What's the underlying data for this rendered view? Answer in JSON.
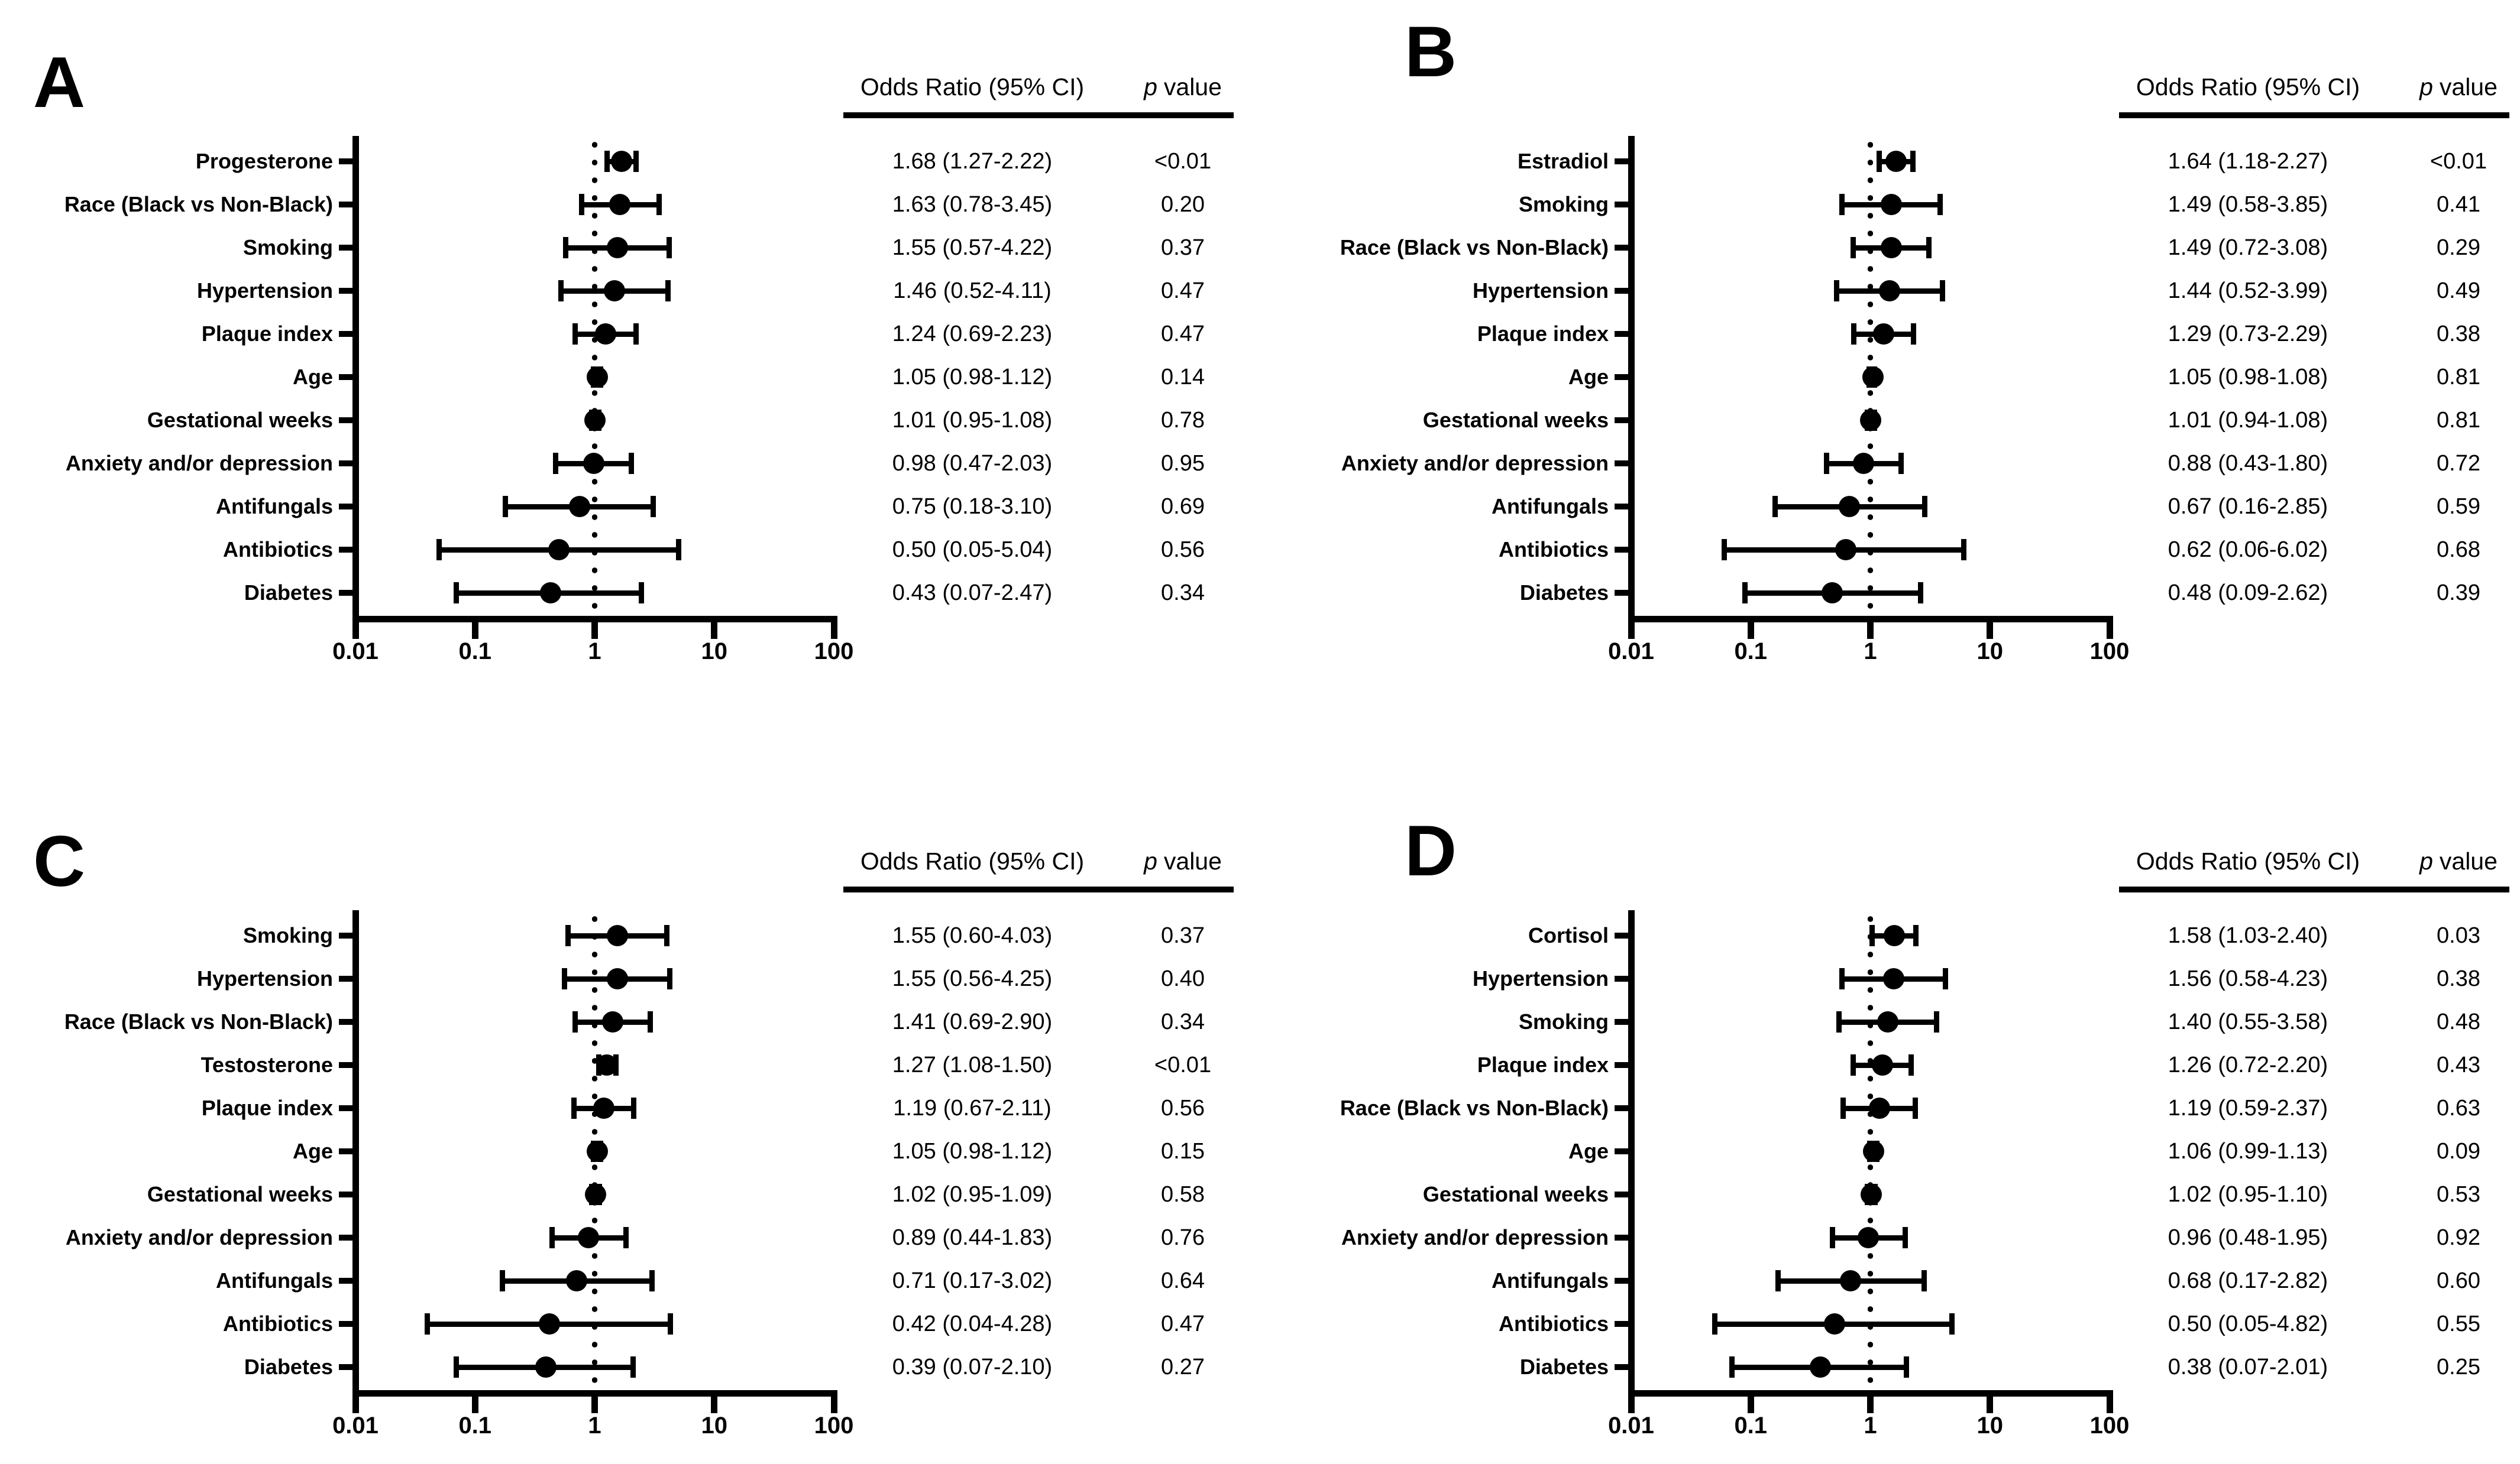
{
  "figure": {
    "background": "#ffffff",
    "ink": "#000000",
    "axis": {
      "scale": "log",
      "min": 0.01,
      "max": 100,
      "reference_line": 1,
      "tick_labels": [
        "0.01",
        "0.1",
        "1",
        "10",
        "100"
      ]
    },
    "table_header": {
      "or": "Odds Ratio (95% CI)",
      "p_symbol": "p",
      "p_word": "value"
    }
  },
  "chart_data": [
    {
      "type": "forest",
      "panel": "A",
      "xlabel": "",
      "xlim": [
        0.01,
        100
      ],
      "rows": [
        {
          "label": "Progesterone",
          "or": 1.68,
          "ci_low": 1.27,
          "ci_high": 2.22,
          "or_ci": "1.68 (1.27-2.22)",
          "p": "<0.01"
        },
        {
          "label": "Race (Black vs Non-Black)",
          "or": 1.63,
          "ci_low": 0.78,
          "ci_high": 3.45,
          "or_ci": "1.63 (0.78-3.45)",
          "p": "0.20"
        },
        {
          "label": "Smoking",
          "or": 1.55,
          "ci_low": 0.57,
          "ci_high": 4.22,
          "or_ci": "1.55 (0.57-4.22)",
          "p": "0.37"
        },
        {
          "label": "Hypertension",
          "or": 1.46,
          "ci_low": 0.52,
          "ci_high": 4.11,
          "or_ci": "1.46 (0.52-4.11)",
          "p": "0.47"
        },
        {
          "label": "Plaque index",
          "or": 1.24,
          "ci_low": 0.69,
          "ci_high": 2.23,
          "or_ci": "1.24 (0.69-2.23)",
          "p": "0.47"
        },
        {
          "label": "Age",
          "or": 1.05,
          "ci_low": 0.98,
          "ci_high": 1.12,
          "or_ci": "1.05 (0.98-1.12)",
          "p": "0.14"
        },
        {
          "label": "Gestational weeks",
          "or": 1.01,
          "ci_low": 0.95,
          "ci_high": 1.08,
          "or_ci": "1.01 (0.95-1.08)",
          "p": "0.78"
        },
        {
          "label": "Anxiety and/or depression",
          "or": 0.98,
          "ci_low": 0.47,
          "ci_high": 2.03,
          "or_ci": "0.98 (0.47-2.03)",
          "p": "0.95"
        },
        {
          "label": "Antifungals",
          "or": 0.75,
          "ci_low": 0.18,
          "ci_high": 3.1,
          "or_ci": "0.75 (0.18-3.10)",
          "p": "0.69"
        },
        {
          "label": "Antibiotics",
          "or": 0.5,
          "ci_low": 0.05,
          "ci_high": 5.04,
          "or_ci": "0.50 (0.05-5.04)",
          "p": "0.56"
        },
        {
          "label": "Diabetes",
          "or": 0.43,
          "ci_low": 0.07,
          "ci_high": 2.47,
          "or_ci": "0.43 (0.07-2.47)",
          "p": "0.34"
        }
      ]
    },
    {
      "type": "forest",
      "panel": "B",
      "xlabel": "",
      "xlim": [
        0.01,
        100
      ],
      "rows": [
        {
          "label": "Estradiol",
          "or": 1.64,
          "ci_low": 1.18,
          "ci_high": 2.27,
          "or_ci": "1.64 (1.18-2.27)",
          "p": "<0.01"
        },
        {
          "label": "Smoking",
          "or": 1.49,
          "ci_low": 0.58,
          "ci_high": 3.85,
          "or_ci": "1.49 (0.58-3.85)",
          "p": "0.41"
        },
        {
          "label": "Race (Black vs Non-Black)",
          "or": 1.49,
          "ci_low": 0.72,
          "ci_high": 3.08,
          "or_ci": "1.49 (0.72-3.08)",
          "p": "0.29"
        },
        {
          "label": "Hypertension",
          "or": 1.44,
          "ci_low": 0.52,
          "ci_high": 3.99,
          "or_ci": "1.44 (0.52-3.99)",
          "p": "0.49"
        },
        {
          "label": "Plaque index",
          "or": 1.29,
          "ci_low": 0.73,
          "ci_high": 2.29,
          "or_ci": "1.29 (0.73-2.29)",
          "p": "0.38"
        },
        {
          "label": "Age",
          "or": 1.05,
          "ci_low": 0.98,
          "ci_high": 1.08,
          "or_ci": "1.05 (0.98-1.08)",
          "p": "0.81"
        },
        {
          "label": "Gestational weeks",
          "or": 1.01,
          "ci_low": 0.94,
          "ci_high": 1.08,
          "or_ci": "1.01 (0.94-1.08)",
          "p": "0.81"
        },
        {
          "label": "Anxiety and/or depression",
          "or": 0.88,
          "ci_low": 0.43,
          "ci_high": 1.8,
          "or_ci": "0.88 (0.43-1.80)",
          "p": "0.72"
        },
        {
          "label": "Antifungals",
          "or": 0.67,
          "ci_low": 0.16,
          "ci_high": 2.85,
          "or_ci": "0.67 (0.16-2.85)",
          "p": "0.59"
        },
        {
          "label": "Antibiotics",
          "or": 0.62,
          "ci_low": 0.06,
          "ci_high": 6.02,
          "or_ci": "0.62 (0.06-6.02)",
          "p": "0.68"
        },
        {
          "label": "Diabetes",
          "or": 0.48,
          "ci_low": 0.09,
          "ci_high": 2.62,
          "or_ci": "0.48 (0.09-2.62)",
          "p": "0.39"
        }
      ]
    },
    {
      "type": "forest",
      "panel": "C",
      "xlabel": "",
      "xlim": [
        0.01,
        100
      ],
      "rows": [
        {
          "label": "Smoking",
          "or": 1.55,
          "ci_low": 0.6,
          "ci_high": 4.03,
          "or_ci": "1.55 (0.60-4.03)",
          "p": "0.37"
        },
        {
          "label": "Hypertension",
          "or": 1.55,
          "ci_low": 0.56,
          "ci_high": 4.25,
          "or_ci": "1.55 (0.56-4.25)",
          "p": "0.40"
        },
        {
          "label": "Race (Black vs Non-Black)",
          "or": 1.41,
          "ci_low": 0.69,
          "ci_high": 2.9,
          "or_ci": "1.41 (0.69-2.90)",
          "p": "0.34"
        },
        {
          "label": "Testosterone",
          "or": 1.27,
          "ci_low": 1.08,
          "ci_high": 1.5,
          "or_ci": "1.27 (1.08-1.50)",
          "p": "<0.01"
        },
        {
          "label": "Plaque index",
          "or": 1.19,
          "ci_low": 0.67,
          "ci_high": 2.11,
          "or_ci": "1.19 (0.67-2.11)",
          "p": "0.56"
        },
        {
          "label": "Age",
          "or": 1.05,
          "ci_low": 0.98,
          "ci_high": 1.12,
          "or_ci": "1.05 (0.98-1.12)",
          "p": "0.15"
        },
        {
          "label": "Gestational weeks",
          "or": 1.02,
          "ci_low": 0.95,
          "ci_high": 1.09,
          "or_ci": "1.02 (0.95-1.09)",
          "p": "0.58"
        },
        {
          "label": "Anxiety and/or depression",
          "or": 0.89,
          "ci_low": 0.44,
          "ci_high": 1.83,
          "or_ci": "0.89 (0.44-1.83)",
          "p": "0.76"
        },
        {
          "label": "Antifungals",
          "or": 0.71,
          "ci_low": 0.17,
          "ci_high": 3.02,
          "or_ci": "0.71 (0.17-3.02)",
          "p": "0.64"
        },
        {
          "label": "Antibiotics",
          "or": 0.42,
          "ci_low": 0.04,
          "ci_high": 4.28,
          "or_ci": "0.42 (0.04-4.28)",
          "p": "0.47"
        },
        {
          "label": "Diabetes",
          "or": 0.39,
          "ci_low": 0.07,
          "ci_high": 2.1,
          "or_ci": "0.39 (0.07-2.10)",
          "p": "0.27"
        }
      ]
    },
    {
      "type": "forest",
      "panel": "D",
      "xlabel": "",
      "xlim": [
        0.01,
        100
      ],
      "rows": [
        {
          "label": "Cortisol",
          "or": 1.58,
          "ci_low": 1.03,
          "ci_high": 2.4,
          "or_ci": "1.58 (1.03-2.40)",
          "p": "0.03"
        },
        {
          "label": "Hypertension",
          "or": 1.56,
          "ci_low": 0.58,
          "ci_high": 4.23,
          "or_ci": "1.56 (0.58-4.23)",
          "p": "0.38"
        },
        {
          "label": "Smoking",
          "or": 1.4,
          "ci_low": 0.55,
          "ci_high": 3.58,
          "or_ci": "1.40 (0.55-3.58)",
          "p": "0.48"
        },
        {
          "label": "Plaque index",
          "or": 1.26,
          "ci_low": 0.72,
          "ci_high": 2.2,
          "or_ci": "1.26 (0.72-2.20)",
          "p": "0.43"
        },
        {
          "label": "Race (Black vs Non-Black)",
          "or": 1.19,
          "ci_low": 0.59,
          "ci_high": 2.37,
          "or_ci": "1.19 (0.59-2.37)",
          "p": "0.63"
        },
        {
          "label": "Age",
          "or": 1.06,
          "ci_low": 0.99,
          "ci_high": 1.13,
          "or_ci": "1.06 (0.99-1.13)",
          "p": "0.09"
        },
        {
          "label": "Gestational weeks",
          "or": 1.02,
          "ci_low": 0.95,
          "ci_high": 1.1,
          "or_ci": "1.02 (0.95-1.10)",
          "p": "0.53"
        },
        {
          "label": "Anxiety and/or depression",
          "or": 0.96,
          "ci_low": 0.48,
          "ci_high": 1.95,
          "or_ci": "0.96 (0.48-1.95)",
          "p": "0.92"
        },
        {
          "label": "Antifungals",
          "or": 0.68,
          "ci_low": 0.17,
          "ci_high": 2.82,
          "or_ci": "0.68 (0.17-2.82)",
          "p": "0.60"
        },
        {
          "label": "Antibiotics",
          "or": 0.5,
          "ci_low": 0.05,
          "ci_high": 4.82,
          "or_ci": "0.50 (0.05-4.82)",
          "p": "0.55"
        },
        {
          "label": "Diabetes",
          "or": 0.38,
          "ci_low": 0.07,
          "ci_high": 2.01,
          "or_ci": "0.38 (0.07-2.01)",
          "p": "0.25"
        }
      ]
    }
  ]
}
